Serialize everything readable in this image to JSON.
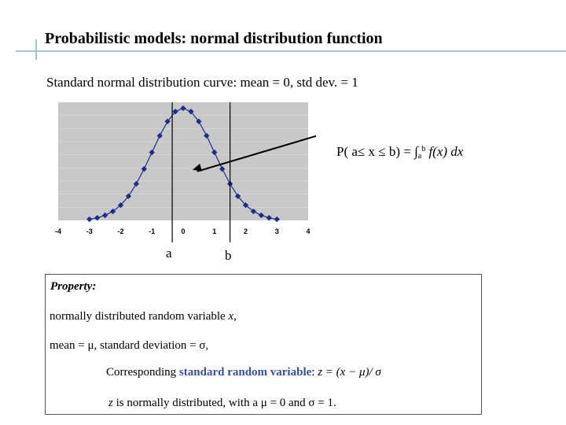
{
  "title": "Probabilistic models: normal distribution function",
  "subtitle": "Standard normal distribution curve: mean = 0, std dev. = 1",
  "formula": {
    "prefix": "P( a≤ x ≤ b) = ∫",
    "lower": "a",
    "upper": "b",
    "integrand": " f(x) dx"
  },
  "labels": {
    "a": "a",
    "b": "b"
  },
  "chart_data": {
    "type": "scatter",
    "x": [
      -3,
      -2.75,
      -2.5,
      -2.25,
      -2,
      -1.75,
      -1.5,
      -1.25,
      -1,
      -0.75,
      -0.5,
      -0.25,
      0,
      0.25,
      0.5,
      0.75,
      1,
      1.25,
      1.5,
      1.75,
      2,
      2.25,
      2.5,
      2.75,
      3
    ],
    "y": [
      0.004,
      0.009,
      0.018,
      0.032,
      0.054,
      0.086,
      0.13,
      0.183,
      0.242,
      0.301,
      0.352,
      0.387,
      0.399,
      0.387,
      0.352,
      0.301,
      0.242,
      0.183,
      0.13,
      0.086,
      0.054,
      0.032,
      0.018,
      0.009,
      0.004
    ],
    "x_ticks": [
      "-4",
      "-3",
      "-2",
      "-1",
      "0",
      "1",
      "2",
      "3",
      "4"
    ],
    "xlim": [
      -4,
      4
    ],
    "ylim": [
      0,
      0.42
    ],
    "vlines": [
      -0.35,
      1.5
    ],
    "marker_color": "#1f2d8a",
    "line_color": "#1f2d8a",
    "plot_bg": "#c8c8c8",
    "grid": true,
    "arrow": {
      "from": [
        4,
        0.3
      ],
      "to": [
        0.3,
        0.18
      ]
    }
  },
  "property": {
    "title": "Property:",
    "line1_text": "normally distributed random variable  ",
    "line1_var": "x",
    "line1_end": ",",
    "line2": "mean = μ,  standard deviation = σ,",
    "line3_pre": "Corresponding ",
    "line3_hl": "standard random variable",
    "line3_post": ": ",
    "line3_formula": "z = (x − μ)/ σ",
    "line4_var": "z",
    "line4_text": "  is normally distributed, with a μ = 0 and σ = 1."
  }
}
